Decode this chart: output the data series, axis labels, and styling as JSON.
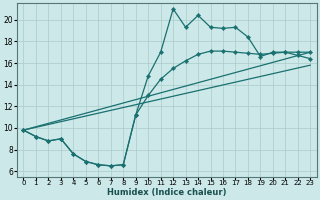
{
  "xlabel": "Humidex (Indice chaleur)",
  "bg_color": "#cce8e8",
  "line_color": "#1a7070",
  "xlim": [
    -0.5,
    23.5
  ],
  "ylim": [
    5.5,
    21.5
  ],
  "xticks": [
    0,
    1,
    2,
    3,
    4,
    5,
    6,
    7,
    8,
    9,
    10,
    11,
    12,
    13,
    14,
    15,
    16,
    17,
    18,
    19,
    20,
    21,
    22,
    23
  ],
  "yticks": [
    6,
    8,
    10,
    12,
    14,
    16,
    18,
    20
  ],
  "grid_color": "#aacccc",
  "series": [
    {
      "x": [
        0,
        1,
        2,
        3,
        4,
        5,
        6,
        7,
        8,
        9,
        10,
        11,
        12,
        13,
        14,
        15,
        16,
        17,
        18,
        19,
        20,
        21,
        22,
        23
      ],
      "y": [
        9.8,
        9.2,
        8.8,
        9.0,
        7.6,
        6.9,
        6.6,
        6.5,
        6.6,
        11.2,
        14.8,
        17.0,
        21.0,
        19.3,
        20.4,
        19.3,
        19.2,
        19.3,
        18.4,
        16.6,
        17.0,
        17.0,
        16.7,
        16.4
      ],
      "has_markers": true
    },
    {
      "x": [
        0,
        1,
        2,
        3,
        4,
        5,
        6,
        7,
        8,
        9,
        10,
        11,
        12,
        13,
        14,
        15,
        16,
        17,
        18,
        19,
        20,
        21,
        22,
        23
      ],
      "y": [
        9.8,
        9.2,
        8.8,
        9.0,
        7.6,
        6.9,
        6.6,
        6.5,
        6.6,
        11.2,
        13.0,
        14.5,
        15.5,
        16.2,
        16.8,
        17.1,
        17.1,
        17.0,
        16.9,
        16.8,
        16.9,
        17.0,
        17.0,
        17.0
      ],
      "has_markers": true
    },
    {
      "x": [
        0,
        23
      ],
      "y": [
        9.8,
        17.0
      ],
      "has_markers": false
    },
    {
      "x": [
        0,
        23
      ],
      "y": [
        9.8,
        15.8
      ],
      "has_markers": false
    }
  ]
}
